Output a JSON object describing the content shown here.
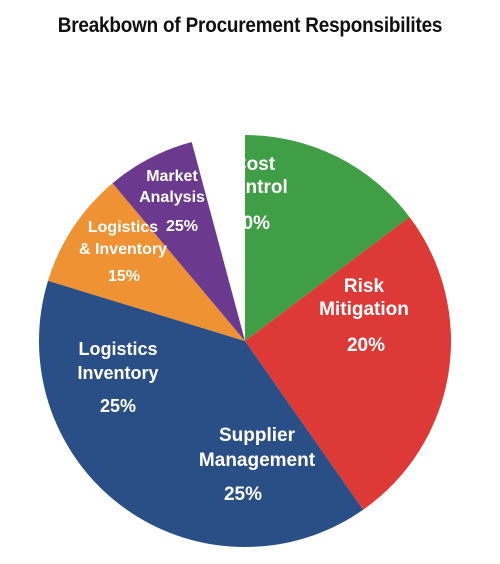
{
  "chart_data": {
    "type": "pie",
    "title": "Breakbown of Procurement Responsibilites",
    "slices": [
      {
        "label": [
          "Cost",
          "Control"
        ],
        "value_label": "20%",
        "value": 20,
        "color": "#3f9e46"
      },
      {
        "label": [
          "Risk",
          "Mitigation"
        ],
        "value_label": "20%",
        "value": 20,
        "color": "#dd3a37"
      },
      {
        "label": [
          "Supplier",
          "Management"
        ],
        "value_label": "25%",
        "value": 25,
        "color": "#2a4f86"
      },
      {
        "label": [
          "Logistics",
          "Inventory"
        ],
        "value_label": "25%",
        "value": 25,
        "color": "#2a4f86"
      },
      {
        "label": [
          "Logistics",
          "& Inventory"
        ],
        "value_label": "15%",
        "value": 15,
        "color": "#ef9233"
      },
      {
        "label": [
          "Market",
          "Analysis"
        ],
        "value_label": "25%",
        "value": 25,
        "color": "#6b3a8e"
      }
    ]
  }
}
